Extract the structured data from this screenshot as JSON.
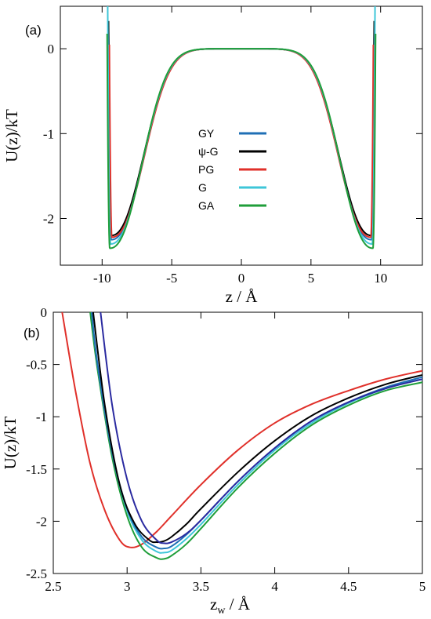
{
  "chart_data": [
    {
      "panel": "(a)",
      "type": "line",
      "xlabel": "z / Å",
      "ylabel": "U(z)/kT",
      "xlim": [
        -13,
        13
      ],
      "ylim": [
        -2.55,
        0.5
      ],
      "xticks": [
        -10,
        -5,
        0,
        5,
        10
      ],
      "xtick_labels": [
        "-10",
        "-5",
        "0",
        "5",
        "10"
      ],
      "yticks": [
        0,
        -1,
        -2
      ],
      "ytick_labels": [
        "0",
        "-1",
        "-2"
      ],
      "grid": false,
      "legend_position": "center",
      "series": [
        {
          "name": "GY",
          "color": "#1f6fb5",
          "zmin": 9.35,
          "umin": -2.25
        },
        {
          "name": "ψ-G",
          "color": "#000000",
          "zmin": 9.35,
          "umin": -2.2
        },
        {
          "name": "PG",
          "color": "#e0302a",
          "zmin": 9.3,
          "umin": -2.22
        },
        {
          "name": "G",
          "color": "#3ec6d8",
          "zmin": 9.4,
          "umin": -2.3
        },
        {
          "name": "GA",
          "color": "#1f9e3a",
          "zmin": 9.45,
          "umin": -2.35
        }
      ]
    },
    {
      "panel": "(b)",
      "type": "line",
      "xlabel_main": "z",
      "xlabel_sub": "w",
      "xlabel_rest": " / Å",
      "ylabel": "U(z)/kT",
      "xlim": [
        2.5,
        5
      ],
      "ylim": [
        -2.5,
        0
      ],
      "xticks": [
        2.5,
        3,
        3.5,
        4,
        4.5,
        5
      ],
      "xtick_labels": [
        "2.5",
        "3",
        "3.5",
        "4",
        "4.5",
        "5"
      ],
      "yticks": [
        0,
        -0.5,
        -1,
        -1.5,
        -2,
        -2.5
      ],
      "ytick_labels": [
        "0",
        "-0.5",
        "-1",
        "-1.5",
        "-2",
        "-2.5"
      ],
      "grid": false,
      "series": [
        {
          "color": "#e0302a",
          "x": [
            2.56,
            2.65,
            2.75,
            2.85,
            2.95,
            3.02,
            3.1,
            3.2,
            3.3,
            3.5,
            3.75,
            4.0,
            4.25,
            4.5,
            4.75,
            5.0
          ],
          "y": [
            0.0,
            -0.75,
            -1.45,
            -1.9,
            -2.18,
            -2.25,
            -2.22,
            -2.1,
            -1.95,
            -1.65,
            -1.32,
            -1.06,
            -0.88,
            -0.75,
            -0.64,
            -0.56
          ]
        },
        {
          "color": "#1f9e3a",
          "x": [
            2.75,
            2.8,
            2.9,
            3.0,
            3.1,
            3.2,
            3.25,
            3.3,
            3.4,
            3.5,
            3.75,
            4.0,
            4.25,
            4.5,
            4.75,
            5.0
          ],
          "y": [
            0.0,
            -0.55,
            -1.4,
            -1.95,
            -2.25,
            -2.35,
            -2.36,
            -2.33,
            -2.22,
            -2.07,
            -1.68,
            -1.35,
            -1.08,
            -0.89,
            -0.75,
            -0.67
          ]
        },
        {
          "color": "#3ec6d8",
          "x": [
            2.76,
            2.8,
            2.9,
            3.0,
            3.1,
            3.2,
            3.25,
            3.3,
            3.4,
            3.5,
            3.75,
            4.0,
            4.25,
            4.5,
            4.75,
            5.0
          ],
          "y": [
            0.0,
            -0.5,
            -1.35,
            -1.9,
            -2.18,
            -2.29,
            -2.3,
            -2.28,
            -2.17,
            -2.03,
            -1.65,
            -1.32,
            -1.06,
            -0.87,
            -0.73,
            -0.64
          ]
        },
        {
          "color": "#1f6fb5",
          "x": [
            2.76,
            2.8,
            2.9,
            3.0,
            3.1,
            3.2,
            3.25,
            3.3,
            3.4,
            3.5,
            3.75,
            4.0,
            4.25,
            4.5,
            4.75,
            5.0
          ],
          "y": [
            0.0,
            -0.5,
            -1.35,
            -1.88,
            -2.15,
            -2.25,
            -2.26,
            -2.24,
            -2.13,
            -1.99,
            -1.62,
            -1.3,
            -1.04,
            -0.86,
            -0.72,
            -0.62
          ]
        },
        {
          "color": "#000000",
          "x": [
            2.77,
            2.85,
            2.95,
            3.05,
            3.15,
            3.2,
            3.25,
            3.3,
            3.4,
            3.5,
            3.75,
            4.0,
            4.25,
            4.5,
            4.75,
            5.0
          ],
          "y": [
            0.0,
            -0.9,
            -1.65,
            -2.02,
            -2.18,
            -2.2,
            -2.19,
            -2.15,
            -2.03,
            -1.88,
            -1.53,
            -1.23,
            -0.99,
            -0.82,
            -0.69,
            -0.6
          ]
        },
        {
          "color": "#2a2aa0",
          "x": [
            2.82,
            2.9,
            3.0,
            3.1,
            3.2,
            3.25,
            3.3,
            3.4,
            3.5,
            3.75,
            4.0,
            4.25,
            4.5,
            4.75,
            5.0
          ],
          "y": [
            0.0,
            -0.9,
            -1.6,
            -2.0,
            -2.18,
            -2.21,
            -2.2,
            -2.12,
            -1.99,
            -1.62,
            -1.3,
            -1.04,
            -0.86,
            -0.73,
            -0.64
          ]
        }
      ]
    }
  ]
}
